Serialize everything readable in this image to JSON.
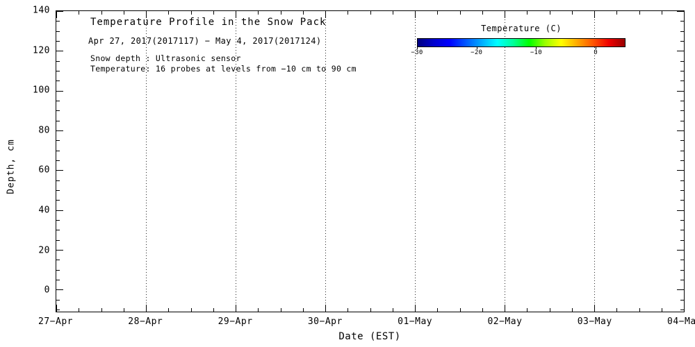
{
  "page": {
    "background_color": "#ffffff",
    "text_color": "#000000",
    "frame_color": "#000000"
  },
  "chart_data": {
    "type": "heatmap",
    "title": "Temperature Profile in the Snow Pack",
    "subtitle": "Apr 27, 2017(2017117) − May  4, 2017(2017124)",
    "annotations": [
      "Snow depth : Ultrasonic sensor",
      "Temperature: 16 probes at levels from −10 cm to 90 cm"
    ],
    "xlabel": "Date (EST)",
    "ylabel": "Depth, cm",
    "x_tick_labels": [
      "27−Apr",
      "28−Apr",
      "29−Apr",
      "30−Apr",
      "01−May",
      "02−May",
      "03−May",
      "04−May"
    ],
    "x_tick_values": [
      0,
      1,
      2,
      3,
      4,
      5,
      6,
      7
    ],
    "y_tick_values": [
      0,
      20,
      40,
      60,
      80,
      100,
      120,
      140
    ],
    "xlim": [
      0,
      7
    ],
    "ylim": [
      -11,
      140
    ],
    "grid": {
      "vertical": "dotted-at-each-day",
      "horizontal": "none"
    },
    "series": [],
    "colorbar": {
      "title": "Temperature (C)",
      "tick_values": [
        -30,
        -20,
        -10,
        0
      ],
      "tick_labels": [
        "−30",
        "−20",
        "−10",
        "0"
      ],
      "range": [
        -30,
        5
      ],
      "colors": [
        "#000080",
        "#0000cd",
        "#0000ff",
        "#0055ff",
        "#00aaff",
        "#00ffff",
        "#00ff99",
        "#00ff00",
        "#99ff00",
        "#ffff00",
        "#ffaa00",
        "#ff5500",
        "#ee0000",
        "#990000"
      ]
    }
  }
}
